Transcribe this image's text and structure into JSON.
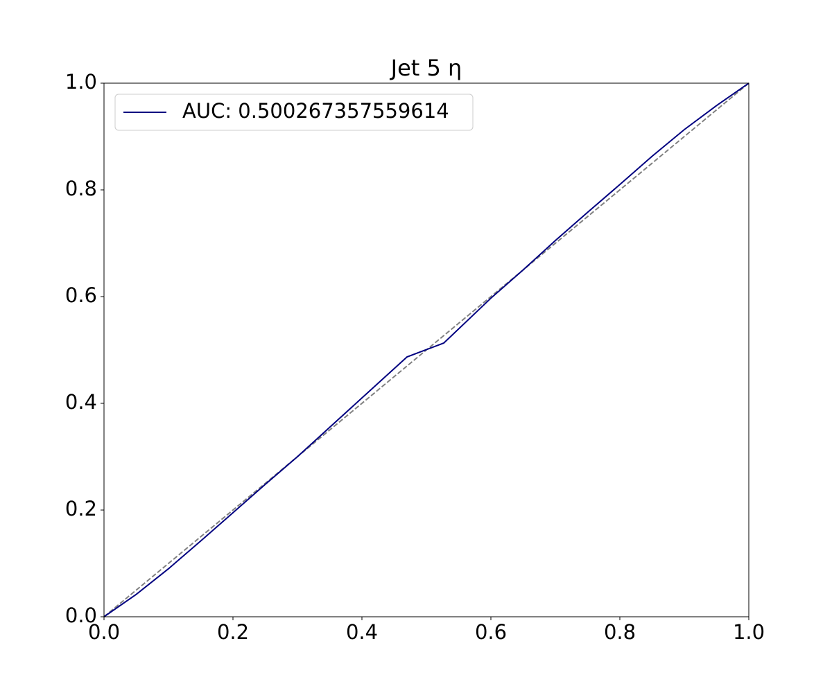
{
  "chart_data": {
    "type": "line",
    "title": "Jet 5 η",
    "series": [
      {
        "name": "AUC: 0.500267357559614",
        "color": "#000080",
        "linestyle": "solid",
        "x": [
          0,
          0.05,
          0.1,
          0.15,
          0.2,
          0.25,
          0.3,
          0.35,
          0.4,
          0.47,
          0.527,
          0.6,
          0.65,
          0.7,
          0.75,
          0.8,
          0.85,
          0.9,
          0.95,
          1.0
        ],
        "values": [
          0,
          0.042,
          0.09,
          0.142,
          0.195,
          0.248,
          0.3,
          0.355,
          0.41,
          0.487,
          0.513,
          0.597,
          0.65,
          0.705,
          0.758,
          0.81,
          0.863,
          0.913,
          0.958,
          1.0
        ]
      },
      {
        "color": "#808080",
        "linestyle": "dashed",
        "x": [
          0,
          1
        ],
        "values": [
          0,
          1
        ]
      }
    ],
    "xlim": [
      0,
      1
    ],
    "ylim": [
      0,
      1
    ],
    "xticks": [
      {
        "value": 0,
        "label": "0.0"
      },
      0.2,
      0.4,
      0.6,
      0.8,
      {
        "value": 1,
        "label": "1.0"
      }
    ],
    "yticks": [
      {
        "value": 0,
        "label": "0.0"
      },
      0.2,
      0.4,
      0.6,
      0.8,
      {
        "value": 1,
        "label": "1.0"
      }
    ],
    "grid": false,
    "legend": "upper left"
  }
}
